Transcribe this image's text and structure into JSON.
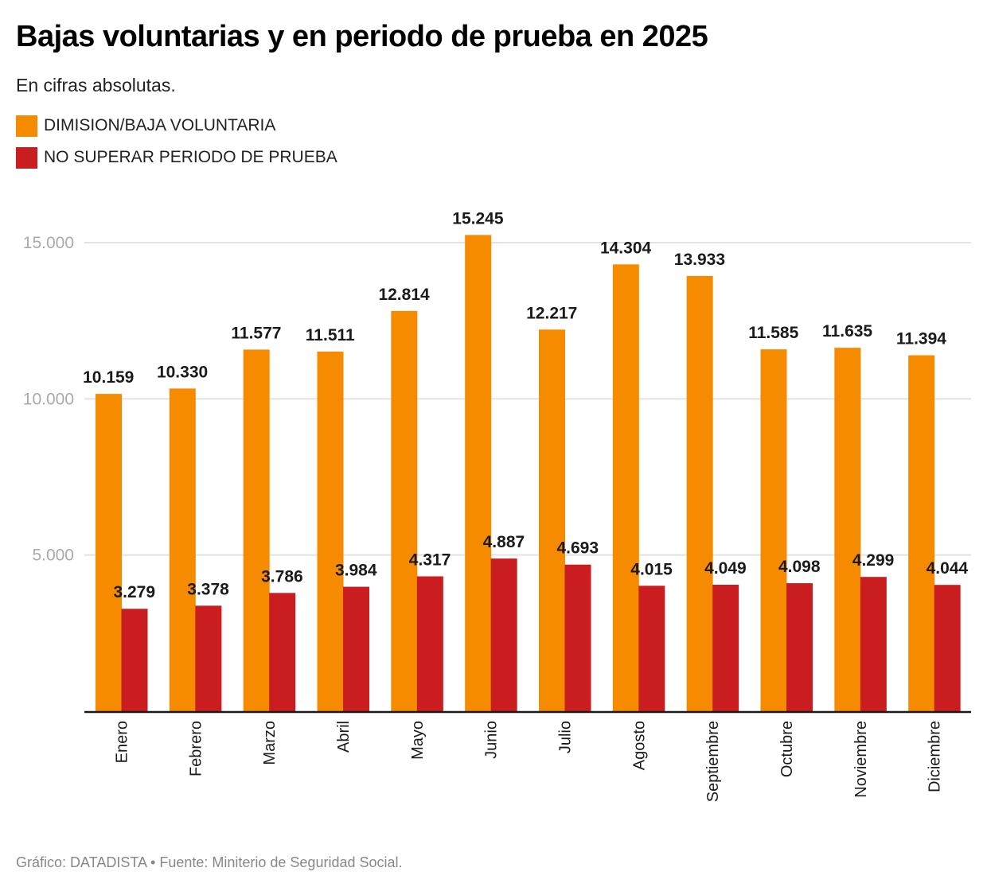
{
  "header": {
    "title": "Bajas voluntarias y en periodo de prueba en 2025",
    "subtitle": "En cifras absolutas."
  },
  "legend": [
    {
      "label": "DIMISION/BAJA VOLUNTARIA",
      "color": "#f78b00"
    },
    {
      "label": "NO SUPERAR PERIODO DE PRUEBA",
      "color": "#c91d1f"
    }
  ],
  "footer": {
    "text": "Gráfico: DATADISTA • Fuente: Miniterio de Seguridad Social."
  },
  "chart_data": {
    "type": "bar",
    "title": "Bajas voluntarias y en periodo de prueba en 2025",
    "subtitle": "En cifras absolutas.",
    "xlabel": "",
    "ylabel": "",
    "ylim": [
      0,
      15000
    ],
    "yticks": [
      5000,
      10000,
      15000
    ],
    "ytick_labels": [
      "5.000",
      "10.000",
      "15.000"
    ],
    "grid": true,
    "legend_position": "top-left",
    "categories": [
      "Enero",
      "Febrero",
      "Marzo",
      "Abril",
      "Mayo",
      "Junio",
      "Julio",
      "Agosto",
      "Septiembre",
      "Octubre",
      "Noviembre",
      "Diciembre"
    ],
    "series": [
      {
        "name": "DIMISION/BAJA VOLUNTARIA",
        "color": "#f78b00",
        "values": [
          10159,
          10330,
          11577,
          11511,
          12814,
          15245,
          12217,
          14304,
          13933,
          11585,
          11635,
          11394
        ],
        "labels": [
          "10.159",
          "10.330",
          "11.577",
          "11.511",
          "12.814",
          "15.245",
          "12.217",
          "14.304",
          "13.933",
          "11.585",
          "11.635",
          "11.394"
        ]
      },
      {
        "name": "NO SUPERAR PERIODO DE PRUEBA",
        "color": "#c91d1f",
        "values": [
          3279,
          3378,
          3786,
          3984,
          4317,
          4887,
          4693,
          4015,
          4049,
          4098,
          4299,
          4044
        ],
        "labels": [
          "3.279",
          "3.378",
          "3.786",
          "3.984",
          "4.317",
          "4.887",
          "4.693",
          "4.015",
          "4.049",
          "4.098",
          "4.299",
          "4.044"
        ]
      }
    ],
    "source": "Gráfico: DATADISTA • Fuente: Miniterio de Seguridad Social."
  }
}
